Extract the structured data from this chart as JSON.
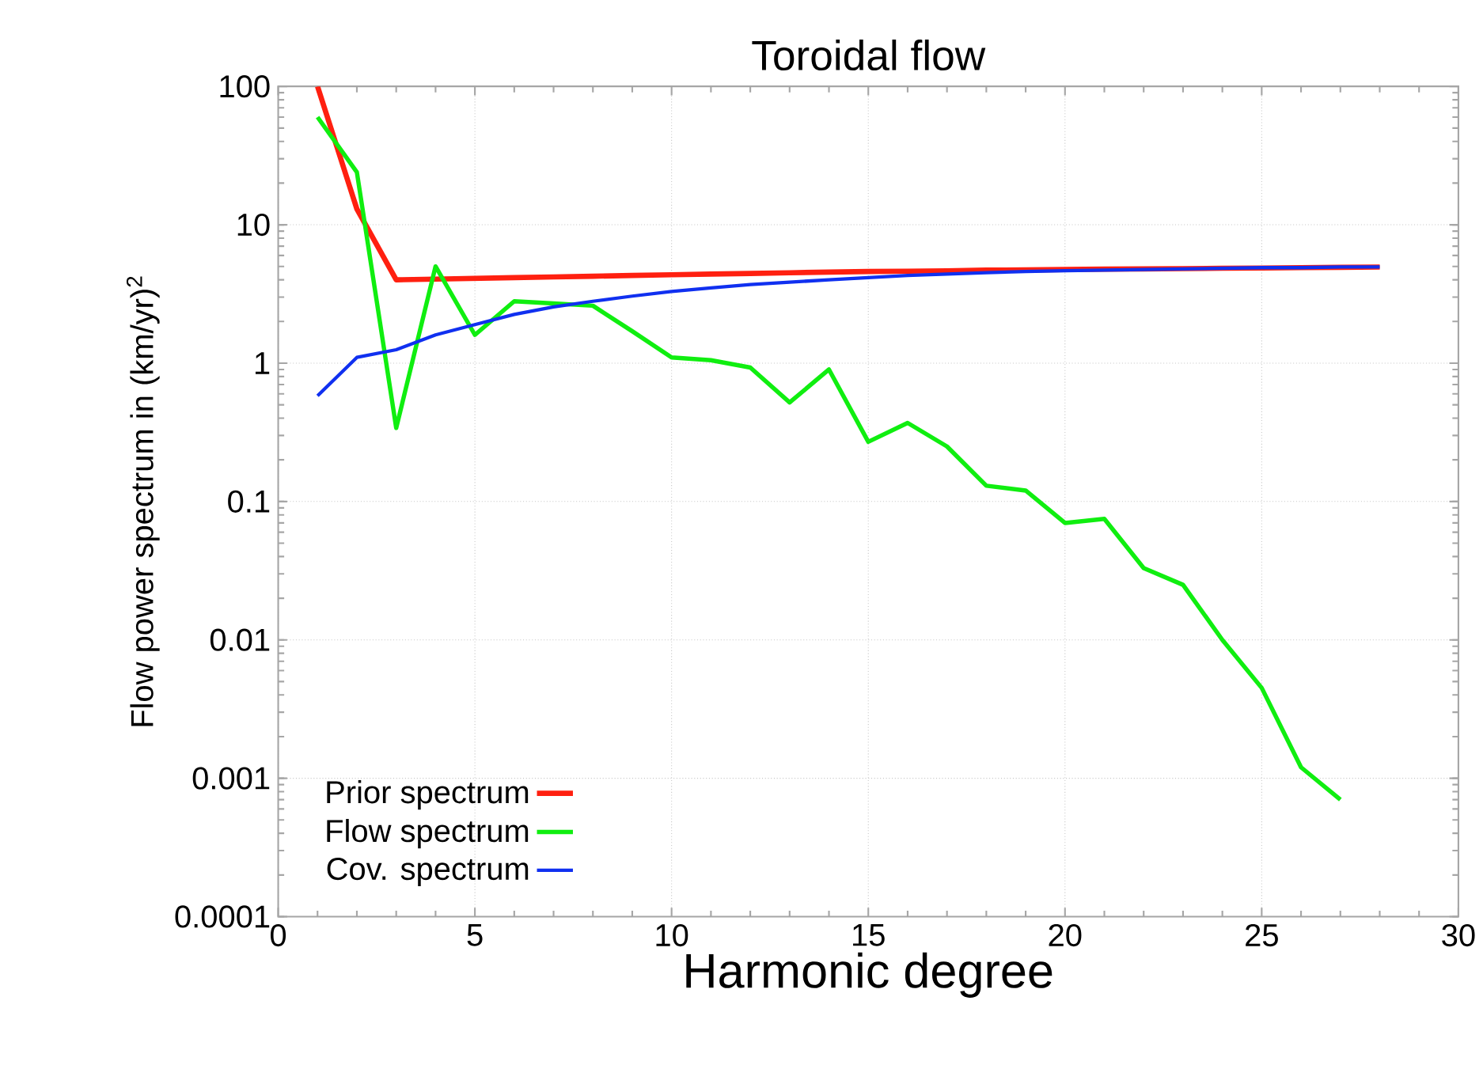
{
  "chart_data": {
    "type": "line",
    "title": "Toroidal flow",
    "xlabel": "Harmonic degree",
    "ylabel": "Flow power spectrum in (km/yr)$^{2}$",
    "log": "y",
    "grid": true,
    "legend": "bottom left",
    "marker": "none",
    "line_style": "solid",
    "xlim": [
      0,
      30
    ],
    "xticks": [
      0,
      5,
      10,
      15,
      20,
      25,
      30
    ],
    "ylim": [
      0.0001,
      100
    ],
    "yticks": [
      {
        "value": 0.0001,
        "label": "0.0001"
      },
      {
        "value": 0.001,
        "label": "0.001"
      },
      {
        "value": 0.01,
        "label": "0.01"
      },
      {
        "value": 0.1,
        "label": "0.1"
      },
      1,
      10,
      100
    ],
    "x": [
      1,
      2,
      3,
      4,
      5,
      6,
      7,
      8,
      9,
      10,
      11,
      12,
      13,
      14,
      15,
      16,
      17,
      18,
      19,
      20,
      21,
      22,
      23,
      24,
      25,
      26,
      27,
      28
    ],
    "series": [
      {
        "name": "Prior spectrum",
        "color": "#ff2010",
        "values": [
          100,
          13,
          4.0,
          4.05,
          4.1,
          4.15,
          4.2,
          4.25,
          4.3,
          4.35,
          4.4,
          4.45,
          4.5,
          4.55,
          4.6,
          4.62,
          4.65,
          4.7,
          4.72,
          4.75,
          4.78,
          4.8,
          4.82,
          4.85,
          4.87,
          4.9,
          4.92,
          4.95
        ]
      },
      {
        "name": "Flow spectrum",
        "color": "#10ee10",
        "values": [
          60,
          24,
          0.34,
          5,
          1.6,
          2.8,
          2.7,
          2.6,
          1.7,
          1.1,
          1.05,
          0.93,
          0.52,
          0.9,
          0.27,
          0.37,
          0.25,
          0.13,
          0.12,
          0.07,
          0.075,
          0.033,
          0.025,
          0.01,
          0.0045,
          0.0012,
          0.0007,
          null
        ]
      },
      {
        "name": "Cov. spectrum",
        "color": "#1030f0",
        "values": [
          0.58,
          1.1,
          1.25,
          1.6,
          1.9,
          2.25,
          2.55,
          2.8,
          3.05,
          3.3,
          3.5,
          3.7,
          3.85,
          4.0,
          4.15,
          4.3,
          4.4,
          4.5,
          4.6,
          4.65,
          4.7,
          4.75,
          4.8,
          4.85,
          4.9,
          4.9,
          4.95,
          4.95
        ]
      }
    ]
  }
}
